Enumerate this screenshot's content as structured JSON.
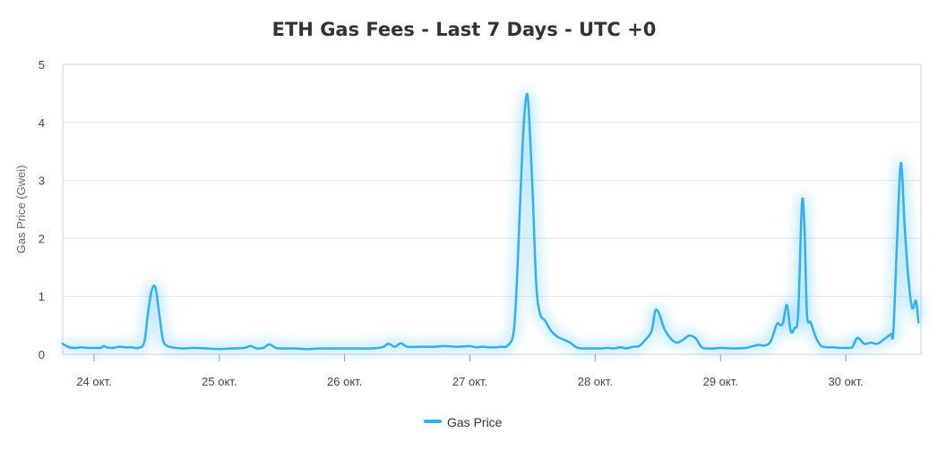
{
  "chart_data": {
    "type": "line",
    "title": "ETH Gas Fees - Last 7 Days - UTC +0",
    "ylabel": "Gas Price (Gwei)",
    "xlabel": "",
    "ylim": [
      0,
      5
    ],
    "yticks": [
      "0",
      "1",
      "2",
      "3",
      "4",
      "5"
    ],
    "xlim": [
      23.75,
      30.6
    ],
    "xticks": [
      {
        "value": 24,
        "label": "24 окт."
      },
      {
        "value": 25,
        "label": "25 окт."
      },
      {
        "value": 26,
        "label": "26 окт."
      },
      {
        "value": 27,
        "label": "27 окт."
      },
      {
        "value": 28,
        "label": "28 окт."
      },
      {
        "value": 29,
        "label": "29 окт."
      },
      {
        "value": 30,
        "label": "30 окт."
      }
    ],
    "grid": true,
    "legend_position": "bottom",
    "series": [
      {
        "name": "Gas Price",
        "color": "#2fb0f0",
        "x": [
          23.75,
          23.8,
          23.85,
          23.9,
          23.95,
          24.0,
          24.05,
          24.08,
          24.1,
          24.15,
          24.2,
          24.25,
          24.3,
          24.35,
          24.4,
          24.43,
          24.46,
          24.49,
          24.52,
          24.55,
          24.58,
          24.62,
          24.7,
          24.8,
          24.9,
          25.0,
          25.1,
          25.2,
          25.25,
          25.3,
          25.35,
          25.4,
          25.45,
          25.5,
          25.6,
          25.7,
          25.8,
          25.9,
          26.0,
          26.1,
          26.2,
          26.3,
          26.35,
          26.4,
          26.45,
          26.5,
          26.6,
          26.7,
          26.8,
          26.9,
          27.0,
          27.05,
          27.1,
          27.15,
          27.2,
          27.25,
          27.3,
          27.35,
          27.38,
          27.42,
          27.45,
          27.47,
          27.5,
          27.53,
          27.56,
          27.6,
          27.65,
          27.7,
          27.75,
          27.8,
          27.85,
          27.9,
          27.95,
          28.0,
          28.05,
          28.1,
          28.15,
          28.2,
          28.25,
          28.3,
          28.35,
          28.4,
          28.45,
          28.48,
          28.51,
          28.55,
          28.6,
          28.65,
          28.7,
          28.75,
          28.8,
          28.85,
          28.9,
          28.95,
          29.0,
          29.1,
          29.2,
          29.3,
          29.35,
          29.4,
          29.45,
          29.48,
          29.5,
          29.53,
          29.56,
          29.59,
          29.62,
          29.65,
          29.67,
          29.69,
          29.72,
          29.76,
          29.8,
          29.85,
          29.9,
          29.95,
          30.0,
          30.05,
          30.08,
          30.1,
          30.15,
          30.2,
          30.25,
          30.3,
          30.33,
          30.36,
          30.38,
          30.41,
          30.44,
          30.47,
          30.5,
          30.53,
          30.56,
          30.58
        ],
        "values": [
          0.18,
          0.12,
          0.11,
          0.12,
          0.11,
          0.11,
          0.11,
          0.14,
          0.12,
          0.11,
          0.13,
          0.12,
          0.12,
          0.11,
          0.2,
          0.7,
          1.1,
          1.15,
          0.7,
          0.25,
          0.15,
          0.12,
          0.1,
          0.11,
          0.1,
          0.09,
          0.1,
          0.11,
          0.14,
          0.1,
          0.11,
          0.17,
          0.11,
          0.1,
          0.1,
          0.09,
          0.1,
          0.1,
          0.1,
          0.1,
          0.1,
          0.12,
          0.18,
          0.13,
          0.19,
          0.13,
          0.13,
          0.13,
          0.14,
          0.13,
          0.14,
          0.12,
          0.13,
          0.12,
          0.12,
          0.13,
          0.15,
          0.4,
          1.5,
          3.6,
          4.45,
          4.2,
          2.8,
          1.2,
          0.7,
          0.58,
          0.4,
          0.3,
          0.25,
          0.2,
          0.12,
          0.1,
          0.1,
          0.1,
          0.1,
          0.11,
          0.1,
          0.12,
          0.1,
          0.13,
          0.14,
          0.25,
          0.4,
          0.75,
          0.7,
          0.45,
          0.28,
          0.2,
          0.25,
          0.32,
          0.28,
          0.12,
          0.1,
          0.1,
          0.11,
          0.1,
          0.11,
          0.16,
          0.15,
          0.22,
          0.52,
          0.5,
          0.55,
          0.85,
          0.4,
          0.45,
          0.7,
          2.6,
          2.2,
          0.7,
          0.55,
          0.3,
          0.15,
          0.12,
          0.12,
          0.11,
          0.11,
          0.12,
          0.25,
          0.28,
          0.18,
          0.2,
          0.18,
          0.25,
          0.3,
          0.35,
          0.4,
          2.0,
          3.3,
          2.2,
          1.3,
          0.8,
          0.92,
          0.55
        ]
      }
    ]
  }
}
